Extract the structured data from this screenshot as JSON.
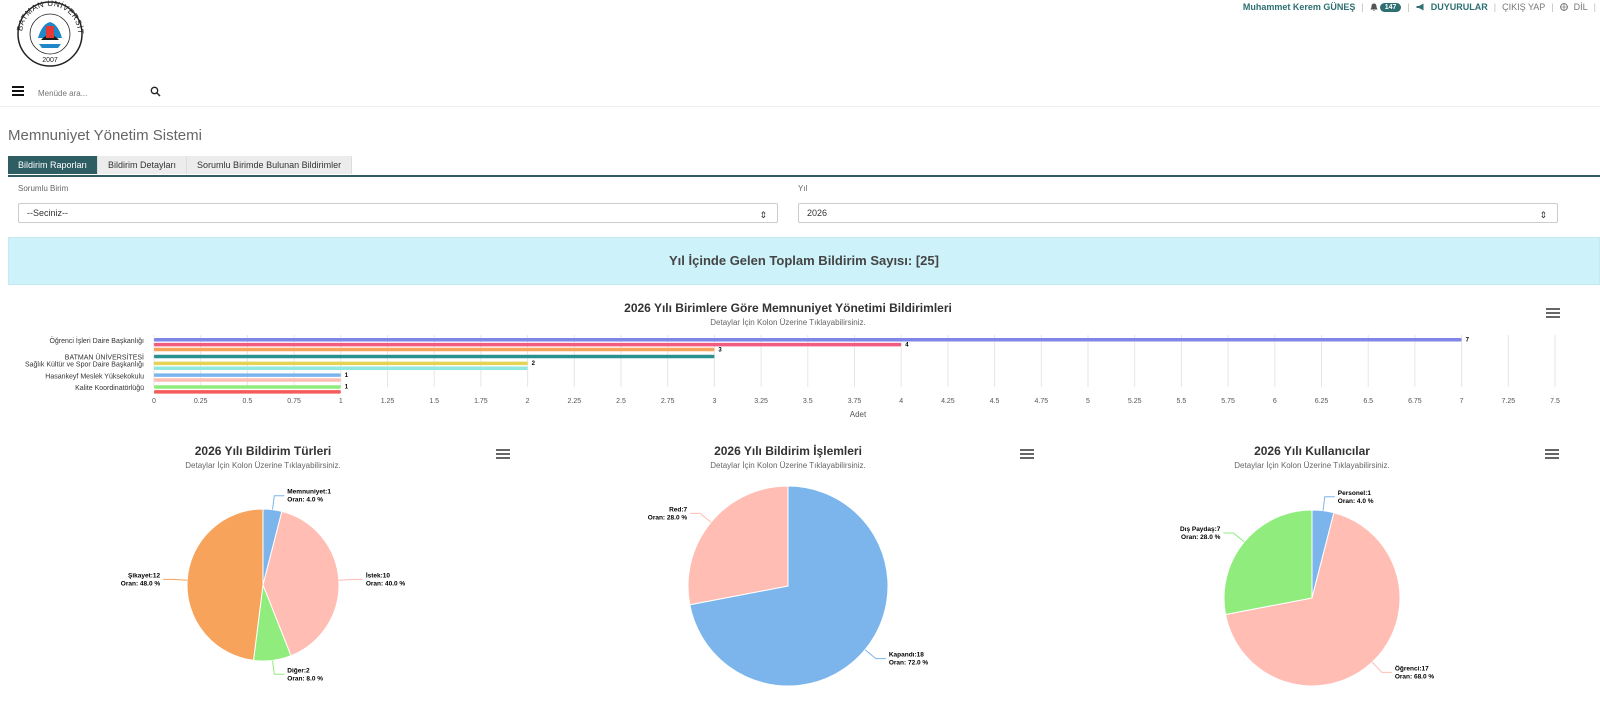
{
  "header": {
    "logo": {
      "text_top": "BATMAN ÜNİVERSİTESİ",
      "year": "2007"
    },
    "user_name": "Muhammet Kerem  GÜNEŞ",
    "notification_count": "147",
    "announcements": "DUYURULAR",
    "logout": "ÇIKIŞ YAP",
    "language": "DİL"
  },
  "menu": {
    "search_placeholder": "Menüde ara..."
  },
  "page": {
    "title": "Memnuniyet Yönetim Sistemi",
    "tabs": [
      "Bildirim Raporları",
      "Bildirim Detayları",
      "Sorumlu Birimde Bulunan Bildirimler"
    ],
    "active_tab": 0
  },
  "filters": {
    "unit_label": "Sorumlu Birim",
    "unit_value": "--Seciniz--",
    "year_label": "Yıl",
    "year_value": "2026"
  },
  "banner_text": "Yıl İçinde Gelen Toplam Bildirim Sayısı: [25]",
  "colors": {
    "tab_active": "#2e5d63",
    "banner_bg": "#cdf2f9",
    "pie_blue": "#7cb5ec",
    "pie_pink": "#ffbdb4",
    "pie_green": "#90ed7d",
    "pie_orange": "#f7a35c"
  },
  "chart_data": [
    {
      "type": "bar",
      "orientation": "horizontal",
      "title": "2026 Yılı Birimlere Göre Memnuniyet Yönetimi Bildirimleri",
      "subtitle": "Detaylar İçin Kolon Üzerine Tıklayabilirsiniz.",
      "xlabel": "Adet",
      "xlim": [
        0,
        7.5
      ],
      "x_ticks": [
        "0",
        "0.25",
        "0.5",
        "0.75",
        "1",
        "1.25",
        "1.5",
        "1.75",
        "2",
        "2.25",
        "2.5",
        "2.75",
        "3",
        "3.25",
        "3.5",
        "3.75",
        "4",
        "4.25",
        "4.5",
        "4.75",
        "5",
        "5.25",
        "5.5",
        "5.75",
        "6",
        "6.25",
        "6.5",
        "6.75",
        "7",
        "7.25",
        "7.5"
      ],
      "grid": true,
      "categories": [
        {
          "label": "Öğrenci İşleri Daire Başkanlığı",
          "bars": [
            {
              "value": 7,
              "color": "#8085e9",
              "label": "7"
            },
            {
              "value": 4,
              "color": "#f15c80",
              "label": "4"
            },
            {
              "value": 3,
              "color": "#f7a35c",
              "label": "3"
            }
          ]
        },
        {
          "label": "BATMAN ÜNİVERSİTESİ",
          "bars": [
            {
              "value": 3,
              "color": "#2b908f",
              "label": ""
            }
          ]
        },
        {
          "label": "Sağlık Kültür ve Spor Daire Başkanlığı",
          "bars": [
            {
              "value": 2,
              "color": "#e4d354",
              "label": "2"
            },
            {
              "value": 2,
              "color": "#91e8e1",
              "label": ""
            }
          ]
        },
        {
          "label": "Hasankeyf Meslek Yüksekokulu",
          "bars": [
            {
              "value": 1,
              "color": "#7cb5ec",
              "label": "1"
            },
            {
              "value": 1,
              "color": "#ffbdb4",
              "label": ""
            }
          ]
        },
        {
          "label": "Kalite Koordinatörlüğü",
          "bars": [
            {
              "value": 1,
              "color": "#90ed7d",
              "label": "1"
            },
            {
              "value": 1,
              "color": "#f45b5b",
              "label": ""
            }
          ]
        }
      ]
    },
    {
      "type": "pie",
      "title": "2026 Yılı Bildirim Türleri",
      "subtitle": "Detaylar İçin Kolon Üzerine Tıklayabilirsiniz.",
      "slices": [
        {
          "name": "Memnuniyet",
          "value": 1,
          "percent": "4.0 %",
          "color": "#7cb5ec"
        },
        {
          "name": "İstek",
          "value": 10,
          "percent": "40.0 %",
          "color": "#ffbdb4"
        },
        {
          "name": "Diğer",
          "value": 2,
          "percent": "8.0 %",
          "color": "#90ed7d"
        },
        {
          "name": "Şikayet",
          "value": 12,
          "percent": "48.0 %",
          "color": "#f7a35c"
        }
      ]
    },
    {
      "type": "pie",
      "title": "2026 Yılı Bildirim İşlemleri",
      "subtitle": "Detaylar İçin Kolon Üzerine Tıklayabilirsiniz.",
      "slices": [
        {
          "name": "Kapandı",
          "value": 18,
          "percent": "72.0 %",
          "color": "#7cb5ec"
        },
        {
          "name": "Red",
          "value": 7,
          "percent": "28.0 %",
          "color": "#ffbdb4"
        }
      ]
    },
    {
      "type": "pie",
      "title": "2026 Yılı Kullanıcılar",
      "subtitle": "Detaylar İçin Kolon Üzerine Tıklayabilirsiniz.",
      "slices": [
        {
          "name": "Personel",
          "value": 1,
          "percent": "4.0 %",
          "color": "#7cb5ec"
        },
        {
          "name": "Öğrenci",
          "value": 17,
          "percent": "68.0 %",
          "color": "#ffbdb4"
        },
        {
          "name": "Dış Paydaş",
          "value": 7,
          "percent": "28.0 %",
          "color": "#90ed7d"
        }
      ]
    }
  ],
  "pie_label_prefix": "Oran: "
}
